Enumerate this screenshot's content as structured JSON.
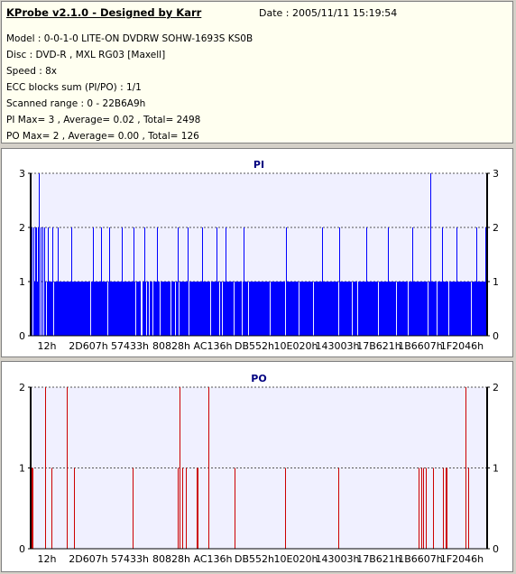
{
  "header": {
    "title": "KProbe v2.1.0 - Designed by Karr",
    "date": "Date : 2005/11/11 15:19:54",
    "lines": [
      "Model : 0-0-1-0 LITE-ON DVDRW SOHW-1693S KS0B",
      "Disc : DVD-R , MXL RG03 [Maxell]",
      "Speed : 8x",
      "ECC blocks sum (PI/PO) : 1/1",
      "Scanned range : 0 - 22B6A9h",
      "PI Max= 3 , Average= 0.02 , Total= 2498",
      "PO Max= 2 , Average= 0.00 , Total= 126"
    ]
  },
  "colors": {
    "pi": "#0000ff",
    "po": "#cc0000",
    "plot_bg": "#f0f0ff"
  },
  "chart_data": [
    {
      "type": "bar",
      "title": "PI",
      "ylim": [
        0,
        3
      ],
      "yticks": [
        0,
        1,
        2,
        3
      ],
      "xlim": [
        0,
        2275001
      ],
      "xtick_labels": [
        "12h",
        "2D607h",
        "57433h",
        "80828h",
        "AC136h",
        "DB552h",
        "10E020h",
        "143003h",
        "17B621h",
        "1B6607h",
        "1F2046h"
      ],
      "series": [
        {
          "base_value": 1,
          "gaps_at_value_0": [
            2,
            3,
            8,
            10,
            12,
            14,
            17,
            25,
            66,
            85,
            116,
            122,
            123,
            128,
            131,
            135,
            143,
            155,
            160,
            164,
            175,
            199,
            209,
            212,
            216,
            225,
            234,
            241,
            265,
            282,
            297,
            313,
            341,
            356,
            362,
            385,
            405,
            418,
            440,
            450,
            463,
            488
          ],
          "spikes_value_2": [
            0,
            1,
            3,
            5,
            6,
            8,
            9,
            11,
            13,
            15,
            19,
            24,
            30,
            45,
            69,
            78,
            87,
            101,
            114,
            126,
            140,
            163,
            174,
            190,
            206,
            216,
            236,
            283,
            323,
            342,
            372,
            396,
            423,
            456,
            472,
            494,
            504
          ],
          "spikes_value_3": [
            9,
            443
          ]
        }
      ]
    },
    {
      "type": "bar",
      "title": "PO",
      "ylim": [
        0,
        2
      ],
      "yticks": [
        0,
        1,
        2
      ],
      "xlim": [
        0,
        2275001
      ],
      "xtick_labels": [
        "12h",
        "2D607h",
        "57433h",
        "80828h",
        "AC136h",
        "DB552h",
        "10E020h",
        "143003h",
        "17B621h",
        "1B6607h",
        "1F2046h"
      ],
      "series": [
        {
          "spikes_value_1": [
            0,
            1,
            2,
            16,
            23,
            48,
            113,
            163,
            168,
            172,
            184,
            185,
            226,
            282,
            341,
            430,
            433,
            435,
            438,
            446,
            457,
            460,
            461,
            485
          ],
          "spikes_value_2": [
            16,
            40,
            165,
            197,
            482
          ]
        }
      ]
    }
  ]
}
